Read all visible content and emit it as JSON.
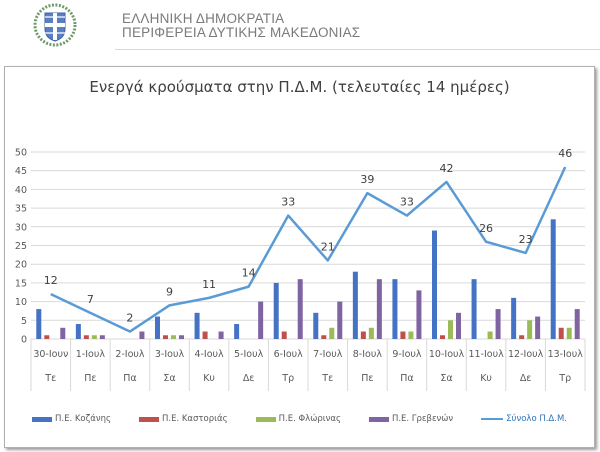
{
  "header": {
    "line1": "ΕΛΛΗΝΙΚΗ ΔΗΜΟΚΡΑΤΙΑ",
    "line2": "ΠΕΡΙΦΕΡΕΙΑ ΔΥΤΙΚΗΣ ΜΑΚΕΔΟΝΙΑΣ",
    "emblem_icon": "greek-coat-of-arms-icon"
  },
  "colors": {
    "kozani": "#4472c4",
    "kastoria": "#c0504d",
    "florina": "#9bbb59",
    "grevena": "#8064a2",
    "total": "#5b9bd5"
  },
  "chart_data": {
    "type": "bar",
    "title": "Ενεργά κρούσματα στην Π.Δ.Μ. (τελευταίες 14 ημέρες)",
    "xlabel": "",
    "ylabel": "",
    "ylim": [
      0,
      50
    ],
    "yticks": [
      0,
      5,
      10,
      15,
      20,
      25,
      30,
      35,
      40,
      45,
      50
    ],
    "grid": true,
    "legend_position": "bottom",
    "categories": [
      "30-Ιουν",
      "1-Ιουλ",
      "2-Ιουλ",
      "3-Ιουλ",
      "4-Ιουλ",
      "5-Ιουλ",
      "6-Ιουλ",
      "7-Ιουλ",
      "8-Ιουλ",
      "9-Ιουλ",
      "10-Ιουλ",
      "11-Ιουλ",
      "12-Ιουλ",
      "13-Ιουλ"
    ],
    "weekdays": [
      "Τε",
      "Πε",
      "Πα",
      "Σα",
      "Κυ",
      "Δε",
      "Τρ",
      "Τε",
      "Πε",
      "Πα",
      "Σα",
      "Κυ",
      "Δε",
      "Τρ"
    ],
    "series": [
      {
        "name": "Π.Ε. Κοζάνης",
        "type": "bar",
        "values": [
          8,
          4,
          0,
          6,
          7,
          4,
          15,
          7,
          18,
          16,
          29,
          16,
          11,
          32
        ]
      },
      {
        "name": "Π.Ε. Καστοριάς",
        "type": "bar",
        "values": [
          1,
          1,
          0,
          1,
          2,
          0,
          2,
          1,
          2,
          2,
          1,
          0,
          1,
          3
        ]
      },
      {
        "name": "Π.Ε. Φλώρινας",
        "type": "bar",
        "values": [
          0,
          1,
          0,
          1,
          0,
          0,
          0,
          3,
          3,
          2,
          5,
          2,
          5,
          3
        ]
      },
      {
        "name": "Π.Ε. Γρεβενών",
        "type": "bar",
        "values": [
          3,
          1,
          2,
          1,
          2,
          10,
          16,
          10,
          16,
          13,
          7,
          8,
          6,
          8
        ]
      },
      {
        "name": "Σύνολο Π.Δ.Μ.",
        "type": "line",
        "values": [
          12,
          7,
          2,
          9,
          11,
          14,
          33,
          21,
          39,
          33,
          42,
          26,
          23,
          46
        ],
        "data_labels": true
      }
    ]
  }
}
